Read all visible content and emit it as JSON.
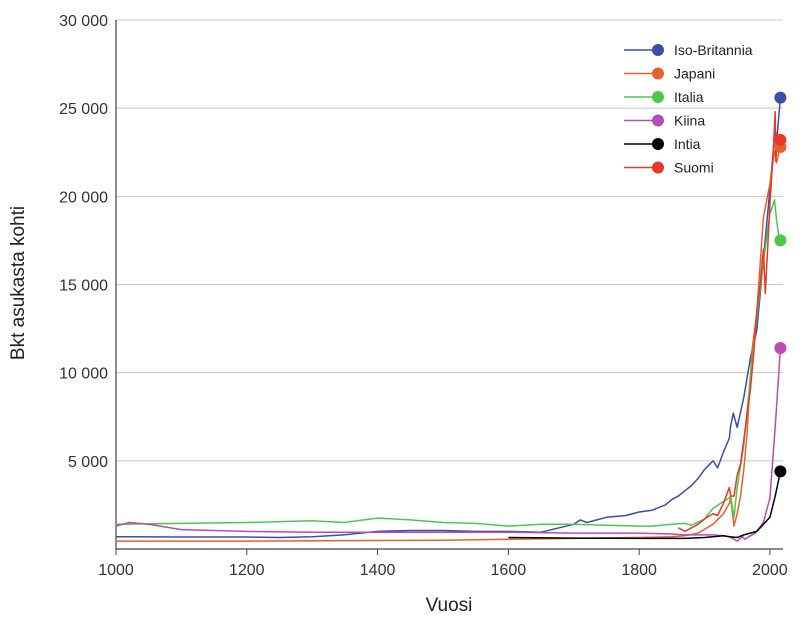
{
  "chart_data": {
    "type": "line",
    "title": "",
    "xlabel": "Vuosi",
    "ylabel": "Bkt asukasta kohti",
    "xlim": [
      1000,
      2020
    ],
    "ylim": [
      0,
      30000
    ],
    "x_ticks": [
      1000,
      1200,
      1400,
      1600,
      1800,
      2000
    ],
    "x_tick_labels": [
      "1000",
      "1200",
      "1400",
      "1600",
      "1800",
      "2000"
    ],
    "y_ticks": [
      5000,
      10000,
      15000,
      20000,
      25000,
      30000
    ],
    "y_tick_labels": [
      "5 000",
      "10 000",
      "15 000",
      "20 000",
      "25 000",
      "30 000"
    ],
    "grid": "horizontal",
    "legend_position": "top-right",
    "series": [
      {
        "name": "Iso-Britannia",
        "color": "#3b4fa8",
        "x": [
          1000,
          1100,
          1200,
          1250,
          1300,
          1348,
          1400,
          1450,
          1500,
          1550,
          1600,
          1650,
          1700,
          1710,
          1720,
          1750,
          1780,
          1800,
          1820,
          1840,
          1850,
          1860,
          1870,
          1880,
          1890,
          1900,
          1913,
          1920,
          1929,
          1938,
          1940,
          1944,
          1950,
          1960,
          1970,
          1980,
          1990,
          2000,
          2008,
          2010,
          2016
        ],
        "y": [
          700,
          680,
          680,
          650,
          700,
          800,
          1000,
          1050,
          1050,
          1000,
          1000,
          950,
          1400,
          1650,
          1500,
          1800,
          1900,
          2100,
          2200,
          2500,
          2800,
          3000,
          3300,
          3600,
          4000,
          4500,
          5000,
          4600,
          5500,
          6300,
          7000,
          7700,
          6900,
          8600,
          10800,
          12400,
          16400,
          20400,
          23800,
          23000,
          25600
        ]
      },
      {
        "name": "Japani",
        "color": "#e8602c",
        "x": [
          1000,
          1200,
          1400,
          1500,
          1600,
          1700,
          1800,
          1850,
          1870,
          1890,
          1913,
          1929,
          1938,
          1940,
          1945,
          1950,
          1955,
          1960,
          1965,
          1970,
          1973,
          1980,
          1990,
          2000,
          2007,
          2010,
          2016
        ],
        "y": [
          450,
          450,
          480,
          500,
          550,
          600,
          650,
          700,
          750,
          900,
          1400,
          2000,
          2600,
          2900,
          1300,
          2000,
          3000,
          4500,
          6500,
          9700,
          11400,
          13400,
          18800,
          20700,
          22600,
          21900,
          22800
        ]
      },
      {
        "name": "Italia",
        "color": "#4cc94c",
        "x": [
          1000,
          1100,
          1200,
          1300,
          1348,
          1400,
          1450,
          1500,
          1550,
          1600,
          1650,
          1700,
          1750,
          1800,
          1820,
          1850,
          1870,
          1880,
          1900,
          1913,
          1929,
          1938,
          1940,
          1945,
          1950,
          1960,
          1970,
          1980,
          1990,
          2000,
          2007,
          2010,
          2013,
          2016
        ],
        "y": [
          1400,
          1450,
          1500,
          1600,
          1500,
          1750,
          1650,
          1500,
          1450,
          1300,
          1400,
          1400,
          1350,
          1300,
          1300,
          1400,
          1450,
          1350,
          1700,
          2300,
          2700,
          2900,
          3000,
          1800,
          3500,
          5900,
          9700,
          13100,
          16300,
          19000,
          19800,
          18700,
          17900,
          17500
        ]
      },
      {
        "name": "Kiina",
        "color": "#b94bb8",
        "x": [
          1000,
          1020,
          1050,
          1100,
          1200,
          1300,
          1400,
          1500,
          1600,
          1700,
          1800,
          1850,
          1870,
          1900,
          1913,
          1929,
          1938,
          1950,
          1958,
          1962,
          1970,
          1978,
          1990,
          2000,
          2008,
          2016
        ],
        "y": [
          1300,
          1500,
          1400,
          1100,
          1000,
          950,
          950,
          950,
          950,
          900,
          900,
          850,
          800,
          800,
          800,
          750,
          700,
          450,
          700,
          550,
          750,
          900,
          1500,
          2900,
          6900,
          11400
        ]
      },
      {
        "name": "Intia",
        "color": "#000000",
        "x": [
          1600,
          1700,
          1800,
          1850,
          1870,
          1900,
          1913,
          1929,
          1938,
          1950,
          1960,
          1970,
          1980,
          1990,
          2000,
          2008,
          2016
        ],
        "y": [
          650,
          620,
          600,
          600,
          600,
          650,
          700,
          750,
          700,
          650,
          800,
          900,
          1000,
          1400,
          1800,
          3000,
          4400
        ]
      },
      {
        "name": "Suomi",
        "color": "#e83828",
        "x": [
          1860,
          1870,
          1890,
          1900,
          1913,
          1920,
          1929,
          1938,
          1940,
          1945,
          1950,
          1955,
          1960,
          1970,
          1975,
          1980,
          1985,
          1990,
          1993,
          2000,
          2005,
          2008,
          2009,
          2012,
          2016
        ],
        "y": [
          1200,
          1000,
          1400,
          1700,
          2000,
          1900,
          2600,
          3500,
          3000,
          3000,
          4200,
          4800,
          6200,
          9000,
          11000,
          13500,
          15000,
          17000,
          14500,
          19500,
          22500,
          24800,
          22000,
          23500,
          23200
        ]
      }
    ]
  }
}
